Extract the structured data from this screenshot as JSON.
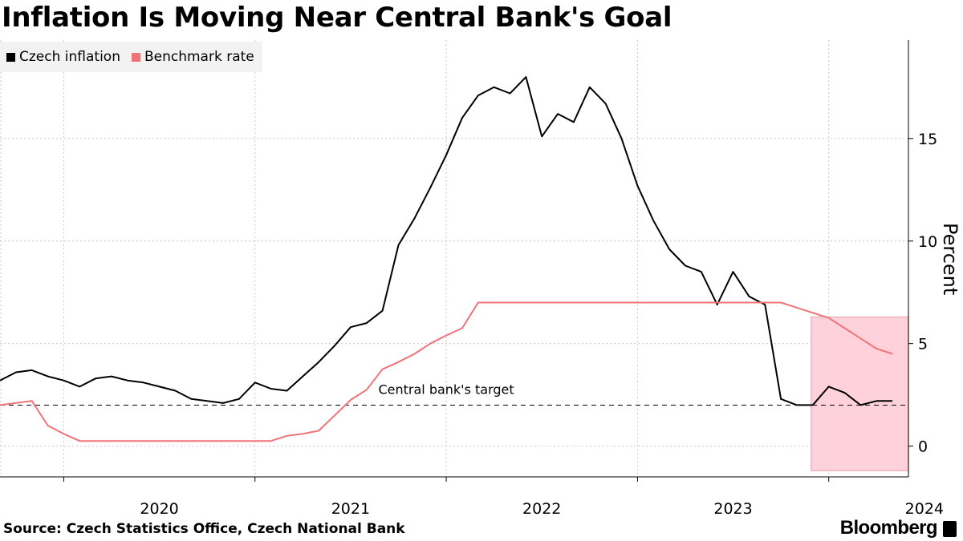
{
  "title": "Inflation Is Moving Near Central Bank's Goal",
  "source": "Source: Czech Statistics Office, Czech National Bank",
  "brand": "Bloomberg",
  "chart_data": {
    "type": "line",
    "title": "Inflation Is Moving Near Central Bank's Goal",
    "ylabel": "Percent",
    "ylim": [
      -1.5,
      19.8
    ],
    "xlim": [
      "2019-09",
      "2024-06"
    ],
    "yticks": [
      0,
      5,
      10,
      15
    ],
    "xtick_labels": [
      "2020",
      "2021",
      "2022",
      "2023",
      "2024"
    ],
    "grid": true,
    "legend_position": "top-left",
    "target": {
      "label": "Central bank's target",
      "value": 2
    },
    "highlight": {
      "from": "2023-12",
      "to": "2024-05",
      "color": "#ffd1da"
    },
    "series": [
      {
        "name": "Czech inflation",
        "color": "#000000",
        "x": [
          "2019-09",
          "2019-10",
          "2019-11",
          "2019-12",
          "2020-01",
          "2020-02",
          "2020-03",
          "2020-04",
          "2020-05",
          "2020-06",
          "2020-07",
          "2020-08",
          "2020-09",
          "2020-10",
          "2020-11",
          "2020-12",
          "2021-01",
          "2021-02",
          "2021-03",
          "2021-04",
          "2021-05",
          "2021-06",
          "2021-07",
          "2021-08",
          "2021-09",
          "2021-10",
          "2021-11",
          "2021-12",
          "2022-01",
          "2022-02",
          "2022-03",
          "2022-04",
          "2022-05",
          "2022-06",
          "2022-07",
          "2022-08",
          "2022-09",
          "2022-10",
          "2022-11",
          "2022-12",
          "2023-01",
          "2023-02",
          "2023-03",
          "2023-04",
          "2023-05",
          "2023-06",
          "2023-07",
          "2023-08",
          "2023-09",
          "2023-10",
          "2023-11",
          "2023-12",
          "2024-01",
          "2024-02",
          "2024-03",
          "2024-04",
          "2024-05"
        ],
        "values": [
          3.2,
          3.6,
          3.7,
          3.4,
          3.2,
          2.9,
          3.3,
          3.4,
          3.2,
          3.1,
          2.9,
          2.7,
          2.3,
          2.2,
          2.1,
          2.3,
          3.1,
          2.8,
          2.7,
          3.4,
          4.1,
          4.9,
          5.8,
          6.0,
          6.6,
          9.8,
          11.1,
          12.6,
          14.2,
          16.0,
          17.1,
          17.5,
          17.2,
          18.0,
          15.1,
          16.2,
          15.8,
          17.5,
          16.7,
          15.0,
          12.7,
          11.0,
          9.6,
          8.8,
          8.5,
          6.9,
          8.5,
          7.3,
          6.9,
          2.3,
          2.0,
          2.0,
          2.9,
          2.6,
          2.0,
          2.2,
          2.2
        ]
      },
      {
        "name": "Benchmark rate",
        "color": "#f07378",
        "x": [
          "2019-09",
          "2019-11",
          "2019-12",
          "2020-01",
          "2020-02",
          "2020-03",
          "2020-04",
          "2020-05",
          "2020-06",
          "2020-07",
          "2020-08",
          "2020-09",
          "2020-10",
          "2020-11",
          "2020-12",
          "2021-01",
          "2021-02",
          "2021-03",
          "2021-04",
          "2021-05",
          "2021-06",
          "2021-07",
          "2021-08",
          "2021-09",
          "2021-10",
          "2021-11",
          "2021-12",
          "2022-01",
          "2022-02",
          "2022-03",
          "2022-04",
          "2022-05",
          "2022-06",
          "2022-07",
          "2022-08",
          "2022-09",
          "2022-10",
          "2022-11",
          "2022-12",
          "2023-01",
          "2023-02",
          "2023-03",
          "2023-04",
          "2023-05",
          "2023-06",
          "2023-07",
          "2023-08",
          "2023-09",
          "2023-10",
          "2023-11",
          "2023-12",
          "2024-01",
          "2024-02",
          "2024-03",
          "2024-04",
          "2024-05"
        ],
        "values": [
          2.0,
          2.2,
          1.0,
          0.6,
          0.25,
          0.25,
          0.25,
          0.25,
          0.25,
          0.25,
          0.25,
          0.25,
          0.25,
          0.25,
          0.25,
          0.25,
          0.25,
          0.5,
          0.6,
          0.75,
          1.5,
          2.25,
          2.75,
          3.75,
          4.1,
          4.5,
          5.0,
          5.4,
          5.75,
          7.0,
          7.0,
          7.0,
          7.0,
          7.0,
          7.0,
          7.0,
          7.0,
          7.0,
          7.0,
          7.0,
          7.0,
          7.0,
          7.0,
          7.0,
          7.0,
          7.0,
          7.0,
          7.0,
          7.0,
          6.75,
          6.5,
          6.25,
          5.75,
          5.25,
          4.75,
          4.5
        ]
      }
    ]
  }
}
